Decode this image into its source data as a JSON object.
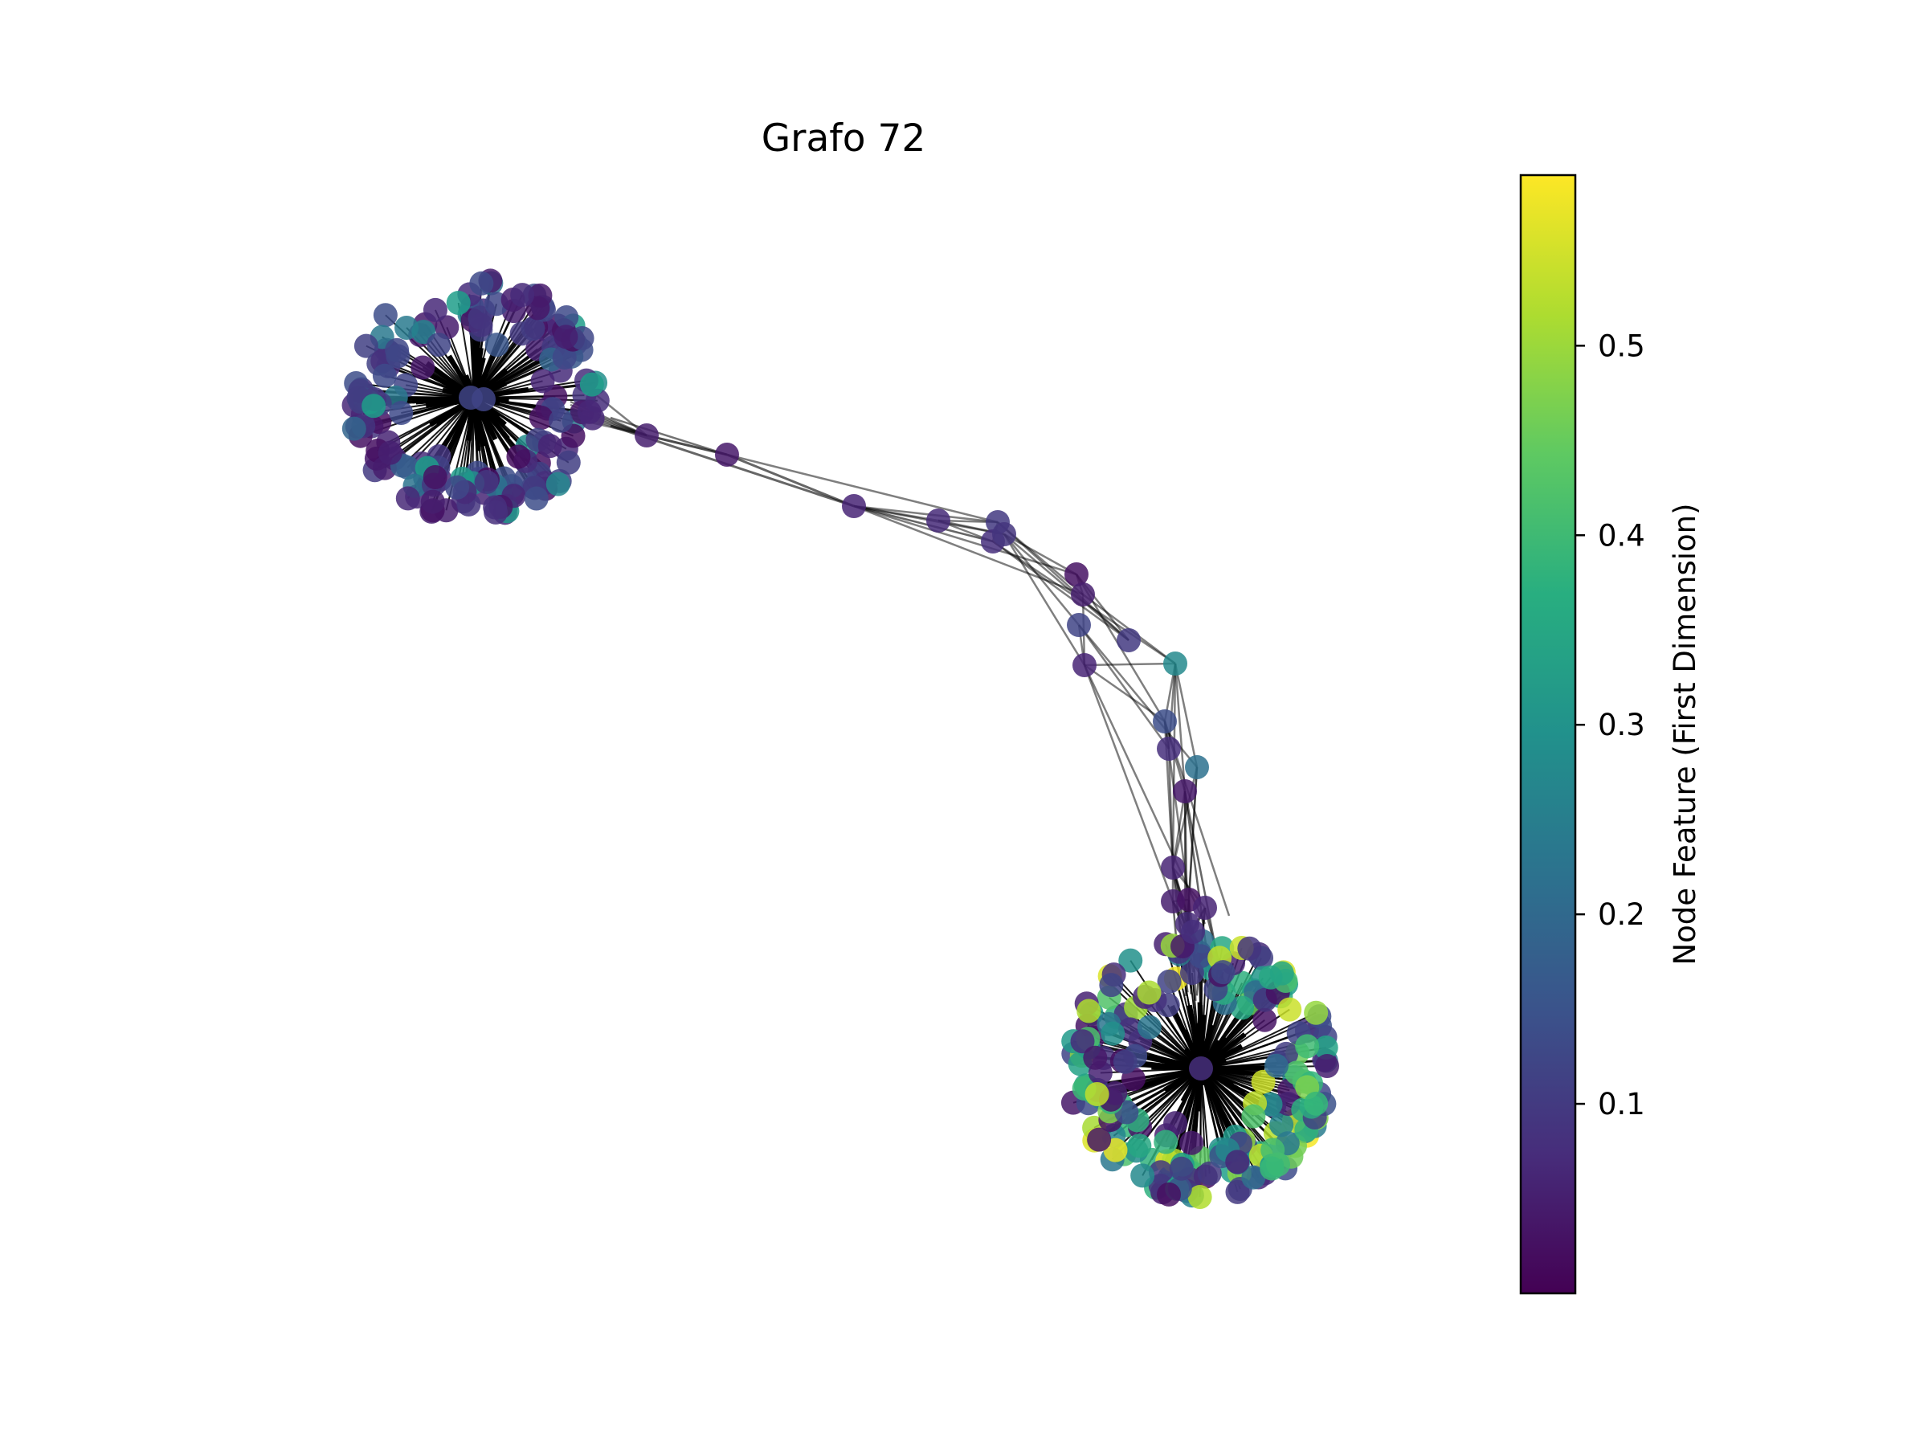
{
  "figure": {
    "title": "Grafo 72"
  },
  "colorbar": {
    "label": "Node Feature (First Dimension)",
    "colormap": "viridis",
    "range": [
      0.0,
      0.59
    ],
    "ticks": [
      {
        "value": 0.1,
        "label": "0.1"
      },
      {
        "value": 0.2,
        "label": "0.2"
      },
      {
        "value": 0.3,
        "label": "0.3"
      },
      {
        "value": 0.4,
        "label": "0.4"
      },
      {
        "value": 0.5,
        "label": "0.5"
      }
    ]
  },
  "graph": {
    "edge_color": "#000000",
    "node_colormap": "viridis",
    "clusters": [
      {
        "name": "upper-left cluster",
        "feature_range": [
          0.0,
          0.35
        ],
        "dominant": "purple"
      },
      {
        "name": "lower-right cluster",
        "feature_range": [
          0.0,
          0.59
        ],
        "dominant": "mixed"
      }
    ],
    "bridge_node_features": [
      0.05,
      0.04,
      0.06,
      0.07,
      0.1,
      0.08,
      0.09,
      0.03,
      0.05,
      0.12,
      0.1,
      0.28,
      0.06,
      0.14,
      0.08,
      0.22,
      0.04,
      0.06,
      0.05,
      0.03,
      0.07,
      0.04,
      0.06,
      0.08
    ]
  }
}
